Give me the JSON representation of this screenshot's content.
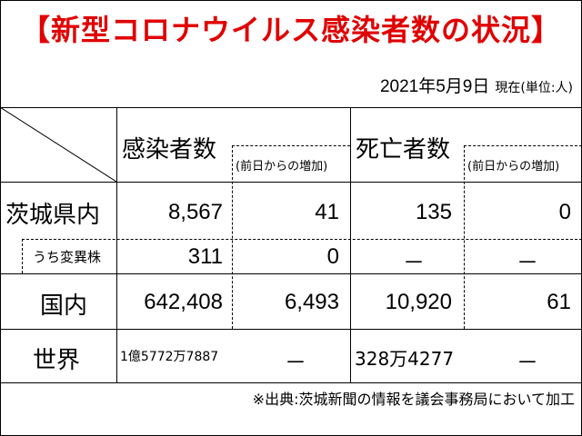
{
  "title": "【新型コロナウイルス感染者数の状況】",
  "date": "2021年5月9日",
  "unit": "現在(単位:人)",
  "headers": {
    "infected": "感染者数",
    "infected_increase": "(前日からの増加)",
    "deaths": "死亡者数",
    "deaths_increase": "(前日からの増加)"
  },
  "rows": [
    {
      "label": "茨城県内",
      "infected": "8,567",
      "infected_increase": "41",
      "deaths": "135",
      "deaths_increase": "0"
    },
    {
      "label": "うち変異株",
      "infected": "311",
      "infected_increase": "0",
      "deaths": "－",
      "deaths_increase": "－"
    },
    {
      "label": "国内",
      "infected": "642,408",
      "infected_increase": "6,493",
      "deaths": "10,920",
      "deaths_increase": "61"
    },
    {
      "label": "世界",
      "infected": "1億5772万7887",
      "infected_increase": "－",
      "deaths": "328万4277",
      "deaths_increase": "－"
    }
  ],
  "footer": "※出典:茨城新聞の情報を議会事務局において加工"
}
